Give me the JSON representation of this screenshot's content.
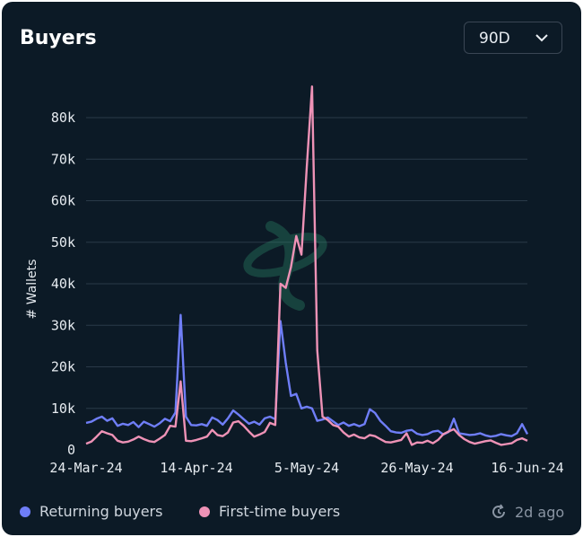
{
  "header": {
    "title": "Buyers",
    "range_value": "90D"
  },
  "legend": {
    "returning_label": "Returning buyers",
    "first_time_label": "First-time buyers"
  },
  "status": {
    "updated": "2d ago"
  },
  "colors": {
    "returning": "#6f7ef7",
    "first_time": "#ee92b6",
    "grid": "#2a3a48",
    "background": "#0c1a26"
  },
  "chart_data": {
    "type": "line",
    "title": "Buyers",
    "xlabel": "",
    "ylabel": "# Wallets",
    "ylim": [
      0,
      88000
    ],
    "yticks": [
      0,
      10000,
      20000,
      30000,
      40000,
      50000,
      60000,
      70000,
      80000
    ],
    "ytick_labels": [
      "0",
      "10k",
      "20k",
      "30k",
      "40k",
      "50k",
      "60k",
      "70k",
      "80k"
    ],
    "xticks": [
      0,
      21,
      42,
      63,
      84
    ],
    "xtick_labels": [
      "24-Mar-24",
      "14-Apr-24",
      "5-May-24",
      "26-May-24",
      "16-Jun-24"
    ],
    "x_count": 85,
    "series": [
      {
        "name": "Returning buyers",
        "values": [
          6500,
          6800,
          7500,
          8000,
          7000,
          7600,
          5800,
          6300,
          6000,
          6700,
          5500,
          6800,
          6200,
          5600,
          6400,
          7500,
          6900,
          9000,
          32500,
          8000,
          6000,
          5900,
          6200,
          5800,
          7800,
          7200,
          6100,
          7600,
          9500,
          8500,
          7400,
          6300,
          6800,
          6100,
          7600,
          8000,
          7400,
          31000,
          21000,
          13000,
          13500,
          10000,
          10400,
          10000,
          7000,
          7300,
          7800,
          6900,
          6000,
          6600,
          5800,
          6200,
          5700,
          6200,
          9800,
          8900,
          7000,
          5800,
          4500,
          4200,
          4100,
          4600,
          4800,
          3900,
          3600,
          3800,
          4400,
          4600,
          3700,
          4300,
          7500,
          4000,
          3800,
          3600,
          3700,
          4000,
          3500,
          3200,
          3400,
          3800,
          3500,
          3300,
          4000,
          6200,
          3800
        ]
      },
      {
        "name": "First-time buyers",
        "values": [
          1500,
          2000,
          3200,
          4500,
          4000,
          3600,
          2200,
          1800,
          2000,
          2500,
          3200,
          2600,
          2100,
          1900,
          2700,
          3600,
          5800,
          5600,
          16500,
          2200,
          2100,
          2400,
          2800,
          3200,
          4800,
          3600,
          3300,
          4200,
          6600,
          6900,
          5800,
          4400,
          3200,
          3700,
          4300,
          6500,
          6000,
          40000,
          39000,
          44000,
          51500,
          47000,
          68000,
          87500,
          24000,
          8000,
          7200,
          6000,
          5600,
          4200,
          3200,
          3700,
          3000,
          2800,
          3600,
          3300,
          2600,
          1900,
          1800,
          2100,
          2400,
          4000,
          1200,
          1800,
          1700,
          2200,
          1600,
          2400,
          3800,
          4400,
          5000,
          3600,
          2600,
          1900,
          1500,
          1800,
          2100,
          2300,
          1700,
          1200,
          1400,
          1600,
          2400,
          2800,
          2200
        ]
      }
    ]
  }
}
